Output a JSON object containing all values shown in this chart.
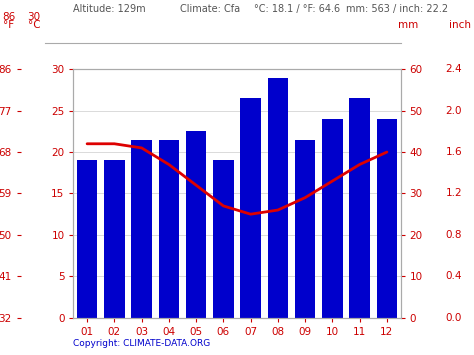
{
  "months": [
    "01",
    "02",
    "03",
    "04",
    "05",
    "06",
    "07",
    "08",
    "09",
    "10",
    "11",
    "12"
  ],
  "precipitation_mm": [
    38,
    38,
    43,
    43,
    45,
    38,
    53,
    58,
    43,
    48,
    53,
    48
  ],
  "temperature_c": [
    21.0,
    21.0,
    20.5,
    18.5,
    16.0,
    13.5,
    12.5,
    13.0,
    14.5,
    16.5,
    18.5,
    20.0
  ],
  "bar_color": "#0000cc",
  "line_color": "#dd0000",
  "temp_yticks_c": [
    0,
    5,
    10,
    15,
    20,
    25,
    30
  ],
  "temp_yticks_f": [
    32,
    41,
    50,
    59,
    68,
    77,
    86
  ],
  "precip_yticks_mm": [
    0,
    10,
    20,
    30,
    40,
    50,
    60
  ],
  "precip_yticks_inch": [
    0.0,
    0.4,
    0.8,
    1.2,
    1.6,
    2.0,
    2.4
  ],
  "background_color": "#ffffff",
  "red_color": "#cc0000",
  "blue_color": "#0000cc",
  "gray_color": "#555555",
  "copyright_text": "Copyright: CLIMATE-DATA.ORG"
}
